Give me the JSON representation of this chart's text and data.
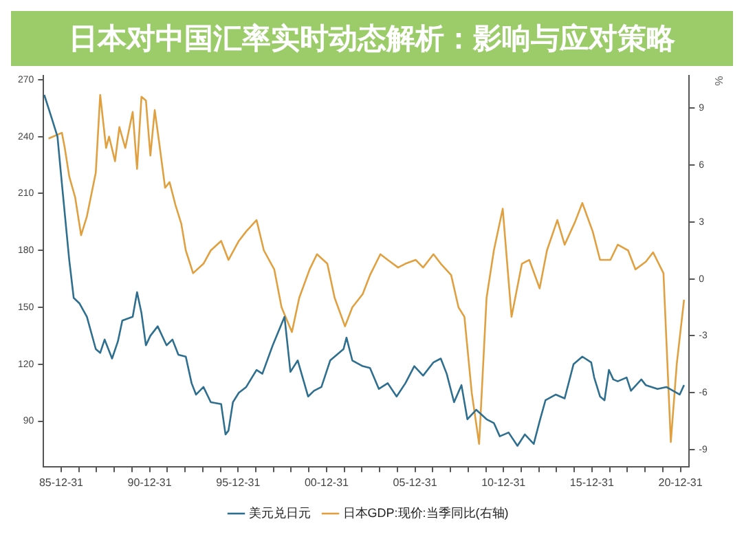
{
  "chart_data": {
    "type": "line",
    "title": "日本对中国汇率实时动态解析：影响与应对策略",
    "y2label": "%",
    "xlim": [
      "1985-01-01",
      "2021-06-30"
    ],
    "xticks": [
      {
        "value": "1985-12-31",
        "label": "85-12-31"
      },
      {
        "value": "1986-12-31",
        "label": null
      },
      {
        "value": "1987-12-31",
        "label": null
      },
      {
        "value": "1988-12-31",
        "label": null
      },
      {
        "value": "1989-12-31",
        "label": null
      },
      {
        "value": "1990-12-31",
        "label": "90-12-31"
      },
      {
        "value": "1991-12-31",
        "label": null
      },
      {
        "value": "1992-12-31",
        "label": null
      },
      {
        "value": "1993-12-31",
        "label": null
      },
      {
        "value": "1994-12-31",
        "label": null
      },
      {
        "value": "1995-12-31",
        "label": "95-12-31"
      },
      {
        "value": "1996-12-31",
        "label": null
      },
      {
        "value": "1997-12-31",
        "label": null
      },
      {
        "value": "1998-12-31",
        "label": null
      },
      {
        "value": "1999-12-31",
        "label": null
      },
      {
        "value": "2000-12-31",
        "label": "00-12-31"
      },
      {
        "value": "2001-12-31",
        "label": null
      },
      {
        "value": "2002-12-31",
        "label": null
      },
      {
        "value": "2003-12-31",
        "label": null
      },
      {
        "value": "2004-12-31",
        "label": null
      },
      {
        "value": "2005-12-31",
        "label": "05-12-31"
      },
      {
        "value": "2006-12-31",
        "label": null
      },
      {
        "value": "2007-12-31",
        "label": null
      },
      {
        "value": "2008-12-31",
        "label": null
      },
      {
        "value": "2009-12-31",
        "label": null
      },
      {
        "value": "2010-12-31",
        "label": "10-12-31"
      },
      {
        "value": "2011-12-31",
        "label": null
      },
      {
        "value": "2012-12-31",
        "label": null
      },
      {
        "value": "2013-12-31",
        "label": null
      },
      {
        "value": "2014-12-31",
        "label": null
      },
      {
        "value": "2015-12-31",
        "label": "15-12-31"
      },
      {
        "value": "2016-12-31",
        "label": null
      },
      {
        "value": "2017-12-31",
        "label": null
      },
      {
        "value": "2018-12-31",
        "label": null
      },
      {
        "value": "2019-12-31",
        "label": null
      },
      {
        "value": "2020-12-31",
        "label": "20-12-31"
      }
    ],
    "ylim": [
      66,
      272
    ],
    "yticks": [
      90,
      120,
      150,
      180,
      210,
      240,
      270
    ],
    "y2lim": [
      -9.9,
      10.7
    ],
    "y2ticks": [
      -9,
      -6,
      -3,
      0,
      3,
      6,
      9
    ],
    "legend": "bottom",
    "marker": "none",
    "line_style": "solid",
    "series": [
      {
        "name": "美元兑日元",
        "color": "#2e6e8e",
        "x": [
          "1985-01",
          "1985-06",
          "1985-10",
          "1986-01",
          "1986-06",
          "1986-09",
          "1987-01",
          "1987-06",
          "1987-12",
          "1988-03",
          "1988-06",
          "1988-11",
          "1989-03",
          "1989-06",
          "1990-01",
          "1990-04",
          "1990-07",
          "1990-10",
          "1991-01",
          "1991-06",
          "1991-12",
          "1992-04",
          "1992-08",
          "1993-01",
          "1993-05",
          "1993-08",
          "1994-01",
          "1994-06",
          "1995-01",
          "1995-04",
          "1995-06",
          "1995-09",
          "1996-01",
          "1996-06",
          "1997-01",
          "1997-05",
          "1997-12",
          "1998-08",
          "1998-12",
          "1999-05",
          "1999-12",
          "2000-04",
          "2000-09",
          "2001-03",
          "2001-12",
          "2002-02",
          "2002-06",
          "2003-01",
          "2003-06",
          "2003-12",
          "2004-06",
          "2004-12",
          "2005-06",
          "2005-12",
          "2006-06",
          "2007-01",
          "2007-06",
          "2007-10",
          "2008-03",
          "2008-08",
          "2008-12",
          "2009-06",
          "2010-01",
          "2010-06",
          "2010-10",
          "2011-04",
          "2011-10",
          "2012-03",
          "2012-09",
          "2013-01",
          "2013-05",
          "2013-12",
          "2014-06",
          "2014-12",
          "2015-06",
          "2015-12",
          "2016-02",
          "2016-06",
          "2016-09",
          "2016-12",
          "2017-03",
          "2017-06",
          "2017-12",
          "2018-03",
          "2018-10",
          "2019-01",
          "2019-09",
          "2020-03",
          "2020-12",
          "2021-03"
        ],
        "values": [
          262,
          250,
          240,
          215,
          175,
          155,
          152,
          145,
          128,
          126,
          133,
          123,
          132,
          143,
          145,
          158,
          147,
          130,
          135,
          140,
          130,
          133,
          125,
          124,
          110,
          104,
          108,
          100,
          99,
          83,
          85,
          100,
          105,
          108,
          117,
          115,
          130,
          145,
          116,
          122,
          103,
          106,
          108,
          122,
          128,
          134,
          122,
          119,
          118,
          107,
          110,
          103,
          110,
          119,
          114,
          121,
          123,
          115,
          100,
          109,
          91,
          96,
          91,
          89,
          82,
          84,
          77,
          83,
          78,
          90,
          101,
          104,
          102,
          120,
          124,
          121,
          113,
          103,
          101,
          117,
          112,
          111,
          113,
          106,
          112,
          109,
          107,
          108,
          104,
          109
        ]
      },
      {
        "name": "日本GDP:现价:当季同比(右轴)",
        "color": "#e0a040",
        "axis": "y2",
        "x": [
          "1985-04",
          "1986-01",
          "1986-03",
          "1986-06",
          "1986-10",
          "1987-02",
          "1987-06",
          "1987-12",
          "1988-03",
          "1988-07",
          "1988-09",
          "1989-01",
          "1989-04",
          "1989-08",
          "1990-01",
          "1990-04",
          "1990-07",
          "1990-10",
          "1991-01",
          "1991-04",
          "1991-07",
          "1991-11",
          "1992-02",
          "1992-06",
          "1992-10",
          "1993-01",
          "1993-06",
          "1994-01",
          "1994-06",
          "1995-01",
          "1995-06",
          "1996-01",
          "1996-06",
          "1997-01",
          "1997-06",
          "1998-01",
          "1998-06",
          "1999-01",
          "1999-06",
          "2000-01",
          "2000-06",
          "2001-01",
          "2001-06",
          "2002-01",
          "2002-06",
          "2003-01",
          "2003-06",
          "2004-01",
          "2004-06",
          "2005-01",
          "2005-06",
          "2006-01",
          "2006-06",
          "2007-01",
          "2007-06",
          "2008-01",
          "2008-06",
          "2008-10",
          "2009-03",
          "2009-08",
          "2010-01",
          "2010-06",
          "2010-12",
          "2011-06",
          "2012-01",
          "2012-06",
          "2013-01",
          "2013-06",
          "2014-01",
          "2014-06",
          "2015-01",
          "2015-06",
          "2016-01",
          "2016-06",
          "2017-01",
          "2017-06",
          "2018-01",
          "2018-06",
          "2019-01",
          "2019-06",
          "2020-01",
          "2020-06",
          "2020-10",
          "2021-03"
        ],
        "values": [
          7.4,
          7.7,
          6.9,
          5.4,
          4.3,
          2.3,
          3.3,
          5.6,
          9.7,
          6.9,
          7.5,
          6.2,
          8.0,
          6.9,
          8.8,
          5.8,
          9.6,
          9.4,
          6.5,
          8.9,
          7.2,
          4.8,
          5.1,
          3.9,
          2.9,
          1.5,
          0.3,
          0.8,
          1.5,
          2.0,
          1.0,
          2.0,
          2.5,
          3.1,
          1.5,
          0.5,
          -1.5,
          -2.8,
          -1.0,
          0.5,
          1.3,
          0.8,
          -1.0,
          -2.5,
          -1.5,
          -0.8,
          0.2,
          1.3,
          1.0,
          0.6,
          0.8,
          1.0,
          0.6,
          1.3,
          0.8,
          0.2,
          -1.5,
          -2.0,
          -6.0,
          -8.7,
          -1.0,
          1.5,
          3.7,
          -2.0,
          0.8,
          1.0,
          -0.5,
          1.5,
          3.1,
          1.8,
          3.0,
          4.0,
          2.5,
          1.0,
          1.0,
          1.8,
          1.5,
          0.5,
          0.9,
          1.4,
          0.3,
          -8.6,
          -4.5,
          -1.1
        ]
      }
    ]
  }
}
